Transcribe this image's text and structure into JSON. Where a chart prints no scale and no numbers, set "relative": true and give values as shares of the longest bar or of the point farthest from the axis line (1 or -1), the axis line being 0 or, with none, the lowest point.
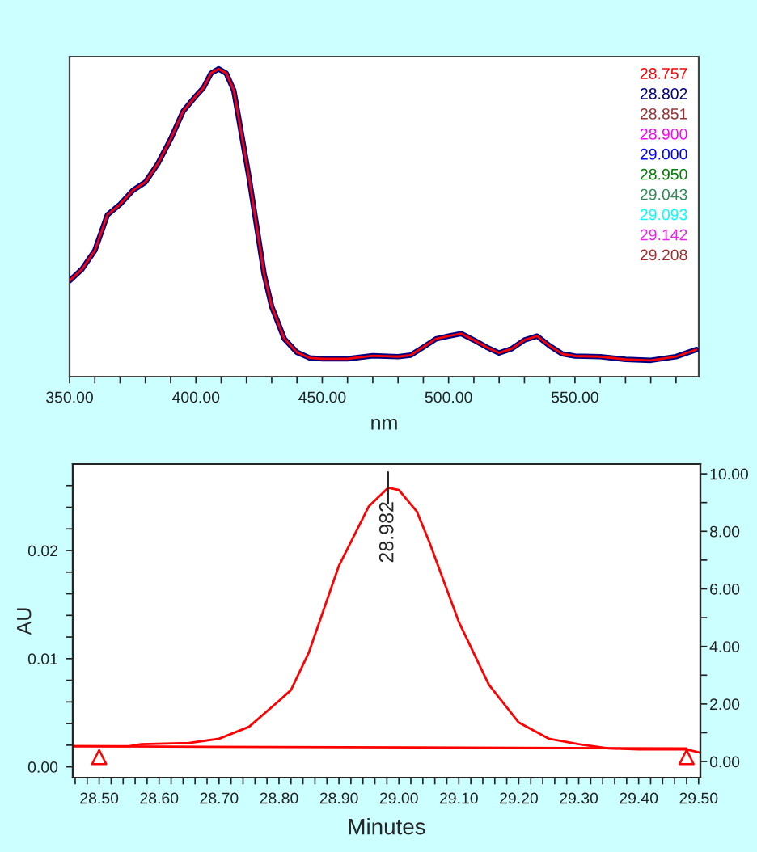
{
  "chart_data": [
    {
      "type": "line",
      "relative": true,
      "xlabel": "nm",
      "legend": "top right",
      "grid": false,
      "x": [
        350,
        355,
        360,
        365,
        370,
        375,
        380,
        385,
        390,
        395,
        400,
        403,
        406,
        409,
        412,
        415,
        418,
        421,
        424,
        427,
        430,
        435,
        440,
        445,
        450,
        460,
        470,
        480,
        485,
        490,
        495,
        500,
        505,
        510,
        515,
        520,
        525,
        530,
        535,
        540,
        545,
        550,
        560,
        570,
        580,
        590,
        598
      ],
      "xlim": [
        350,
        599
      ],
      "xticks": [
        {
          "value": 350,
          "label": "350.00"
        },
        {
          "value": 360,
          "label": null
        },
        {
          "value": 370,
          "label": null
        },
        {
          "value": 380,
          "label": null
        },
        {
          "value": 390,
          "label": null
        },
        {
          "value": 400,
          "label": "400.00"
        },
        {
          "value": 410,
          "label": null
        },
        {
          "value": 420,
          "label": null
        },
        {
          "value": 430,
          "label": null
        },
        {
          "value": 440,
          "label": null
        },
        {
          "value": 450,
          "label": "450.00"
        },
        {
          "value": 460,
          "label": null
        },
        {
          "value": 470,
          "label": null
        },
        {
          "value": 480,
          "label": null
        },
        {
          "value": 490,
          "label": null
        },
        {
          "value": 500,
          "label": "500.00"
        },
        {
          "value": 510,
          "label": null
        },
        {
          "value": 520,
          "label": null
        },
        {
          "value": 530,
          "label": null
        },
        {
          "value": 540,
          "label": null
        },
        {
          "value": 550,
          "label": "550.00"
        },
        {
          "value": 560,
          "label": null
        },
        {
          "value": 570,
          "label": null
        },
        {
          "value": 580,
          "label": null
        },
        {
          "value": 590,
          "label": null
        }
      ],
      "series": [
        {
          "name": "28.757",
          "color": "#ff0000",
          "values": [
            0.312,
            0.35,
            0.41,
            0.526,
            0.56,
            0.605,
            0.632,
            0.693,
            0.772,
            0.863,
            0.912,
            0.939,
            0.986,
            1.0,
            0.986,
            0.93,
            0.79,
            0.649,
            0.491,
            0.333,
            0.228,
            0.123,
            0.079,
            0.061,
            0.058,
            0.058,
            0.068,
            0.065,
            0.07,
            0.096,
            0.123,
            0.132,
            0.14,
            0.119,
            0.096,
            0.077,
            0.091,
            0.119,
            0.132,
            0.1,
            0.074,
            0.067,
            0.065,
            0.056,
            0.053,
            0.065,
            0.088
          ]
        },
        {
          "name": "28.802",
          "color": "#000080",
          "values": [
            0.312,
            0.35,
            0.41,
            0.526,
            0.56,
            0.605,
            0.632,
            0.693,
            0.772,
            0.863,
            0.912,
            0.939,
            0.986,
            1.0,
            0.986,
            0.93,
            0.79,
            0.649,
            0.491,
            0.333,
            0.228,
            0.123,
            0.079,
            0.061,
            0.058,
            0.058,
            0.068,
            0.065,
            0.07,
            0.096,
            0.123,
            0.132,
            0.14,
            0.119,
            0.096,
            0.077,
            0.091,
            0.119,
            0.132,
            0.1,
            0.074,
            0.067,
            0.065,
            0.056,
            0.053,
            0.065,
            0.088
          ]
        },
        {
          "name": "28.851",
          "color": "#993333",
          "values": [
            null,
            null,
            null,
            null,
            null,
            null,
            null,
            null,
            null,
            null,
            null,
            null,
            null,
            null,
            null,
            null,
            null,
            null,
            null,
            null,
            null,
            null,
            null,
            null,
            null,
            null,
            null,
            null,
            null,
            null,
            null,
            null,
            null,
            null,
            null,
            null,
            null,
            null,
            null,
            null,
            null,
            null,
            null,
            null,
            null,
            null,
            null
          ]
        },
        {
          "name": "28.900",
          "color": "#ff00ff",
          "values": [
            null,
            null,
            null,
            null,
            null,
            null,
            null,
            null,
            null,
            null,
            null,
            null,
            null,
            null,
            null,
            null,
            null,
            null,
            null,
            null,
            null,
            null,
            null,
            null,
            null,
            null,
            null,
            null,
            null,
            null,
            null,
            null,
            null,
            null,
            null,
            null,
            null,
            null,
            null,
            null,
            null,
            null,
            null,
            null,
            null,
            null,
            null
          ]
        },
        {
          "name": "29.000",
          "color": "#0000ff",
          "values": [
            null,
            null,
            null,
            null,
            null,
            null,
            null,
            null,
            null,
            null,
            null,
            null,
            null,
            null,
            null,
            null,
            null,
            null,
            null,
            null,
            null,
            null,
            null,
            null,
            null,
            null,
            null,
            null,
            null,
            null,
            null,
            null,
            null,
            null,
            null,
            null,
            null,
            null,
            null,
            null,
            null,
            null,
            null,
            null,
            null,
            null,
            null
          ]
        },
        {
          "name": "28.950",
          "color": "#008000",
          "values": [
            null,
            null,
            null,
            null,
            null,
            null,
            null,
            null,
            null,
            null,
            null,
            null,
            null,
            null,
            null,
            null,
            null,
            null,
            null,
            null,
            null,
            null,
            null,
            null,
            null,
            null,
            null,
            null,
            null,
            null,
            null,
            null,
            null,
            null,
            null,
            null,
            null,
            null,
            null,
            null,
            null,
            null,
            null,
            null,
            null,
            null,
            null
          ]
        },
        {
          "name": "29.043",
          "color": "#2e8b57",
          "values": [
            null,
            null,
            null,
            null,
            null,
            null,
            null,
            null,
            null,
            null,
            null,
            null,
            null,
            null,
            null,
            null,
            null,
            null,
            null,
            null,
            null,
            null,
            null,
            null,
            null,
            null,
            null,
            null,
            null,
            null,
            null,
            null,
            null,
            null,
            null,
            null,
            null,
            null,
            null,
            null,
            null,
            null,
            null,
            null,
            null,
            null,
            null
          ]
        },
        {
          "name": "29.093",
          "color": "#00ffff",
          "values": [
            null,
            null,
            null,
            null,
            null,
            null,
            null,
            null,
            null,
            null,
            null,
            null,
            null,
            null,
            null,
            null,
            null,
            null,
            null,
            null,
            null,
            null,
            null,
            null,
            null,
            null,
            null,
            null,
            null,
            null,
            null,
            null,
            null,
            null,
            null,
            null,
            null,
            null,
            null,
            null,
            null,
            null,
            null,
            null,
            null,
            null,
            null
          ]
        },
        {
          "name": "29.142",
          "color": "#ee22ee",
          "values": [
            null,
            null,
            null,
            null,
            null,
            null,
            null,
            null,
            null,
            null,
            null,
            null,
            null,
            null,
            null,
            null,
            null,
            null,
            null,
            null,
            null,
            null,
            null,
            null,
            null,
            null,
            null,
            null,
            null,
            null,
            null,
            null,
            null,
            null,
            null,
            null,
            null,
            null,
            null,
            null,
            null,
            null,
            null,
            null,
            null,
            null,
            null
          ]
        },
        {
          "name": "29.208",
          "color": "#a52a2a",
          "values": [
            null,
            null,
            null,
            null,
            null,
            null,
            null,
            null,
            null,
            null,
            null,
            null,
            null,
            null,
            null,
            null,
            null,
            null,
            null,
            null,
            null,
            null,
            null,
            null,
            null,
            null,
            null,
            null,
            null,
            null,
            null,
            null,
            null,
            null,
            null,
            null,
            null,
            null,
            null,
            null,
            null,
            null,
            null,
            null,
            null,
            null,
            null
          ]
        }
      ]
    },
    {
      "type": "line",
      "xlabel": "Minutes",
      "ylabel": "AU",
      "grid": false,
      "xlim": [
        28.456,
        29.503
      ],
      "xticks": [
        {
          "value": 28.5,
          "label": "28.50"
        },
        {
          "value": 28.6,
          "label": "28.60"
        },
        {
          "value": 28.7,
          "label": "28.70"
        },
        {
          "value": 28.8,
          "label": "28.80"
        },
        {
          "value": 28.9,
          "label": "28.90"
        },
        {
          "value": 29.0,
          "label": "29.00"
        },
        {
          "value": 29.1,
          "label": "29.10"
        },
        {
          "value": 29.2,
          "label": "29.20"
        },
        {
          "value": 29.3,
          "label": "29.30"
        },
        {
          "value": 29.4,
          "label": "29.40"
        },
        {
          "value": 29.5,
          "label": "29.50"
        },
        {
          "value": 28.46,
          "label": null
        },
        {
          "value": 28.48,
          "label": null
        },
        {
          "value": 28.52,
          "label": null
        },
        {
          "value": 28.54,
          "label": null
        },
        {
          "value": 28.56,
          "label": null
        },
        {
          "value": 28.58,
          "label": null
        },
        {
          "value": 28.62,
          "label": null
        },
        {
          "value": 28.64,
          "label": null
        },
        {
          "value": 28.66,
          "label": null
        },
        {
          "value": 28.68,
          "label": null
        },
        {
          "value": 28.72,
          "label": null
        },
        {
          "value": 28.74,
          "label": null
        },
        {
          "value": 28.76,
          "label": null
        },
        {
          "value": 28.78,
          "label": null
        },
        {
          "value": 28.82,
          "label": null
        },
        {
          "value": 28.84,
          "label": null
        },
        {
          "value": 28.86,
          "label": null
        },
        {
          "value": 28.88,
          "label": null
        },
        {
          "value": 28.92,
          "label": null
        },
        {
          "value": 28.94,
          "label": null
        },
        {
          "value": 28.96,
          "label": null
        },
        {
          "value": 28.98,
          "label": null
        },
        {
          "value": 29.02,
          "label": null
        },
        {
          "value": 29.04,
          "label": null
        },
        {
          "value": 29.06,
          "label": null
        },
        {
          "value": 29.08,
          "label": null
        },
        {
          "value": 29.12,
          "label": null
        },
        {
          "value": 29.14,
          "label": null
        },
        {
          "value": 29.16,
          "label": null
        },
        {
          "value": 29.18,
          "label": null
        },
        {
          "value": 29.22,
          "label": null
        },
        {
          "value": 29.24,
          "label": null
        },
        {
          "value": 29.26,
          "label": null
        },
        {
          "value": 29.28,
          "label": null
        },
        {
          "value": 29.32,
          "label": null
        },
        {
          "value": 29.34,
          "label": null
        },
        {
          "value": 29.36,
          "label": null
        },
        {
          "value": 29.38,
          "label": null
        },
        {
          "value": 29.42,
          "label": null
        },
        {
          "value": 29.44,
          "label": null
        },
        {
          "value": 29.46,
          "label": null
        },
        {
          "value": 29.48,
          "label": null
        }
      ],
      "ylim": [
        -0.001,
        0.028
      ],
      "yticks": [
        {
          "value": 0.0,
          "label": "0.00"
        },
        {
          "value": 0.01,
          "label": "0.01"
        },
        {
          "value": 0.02,
          "label": "0.02"
        },
        {
          "value": 0.002,
          "label": null
        },
        {
          "value": 0.004,
          "label": null
        },
        {
          "value": 0.006,
          "label": null
        },
        {
          "value": 0.008,
          "label": null
        },
        {
          "value": 0.012,
          "label": null
        },
        {
          "value": 0.014,
          "label": null
        },
        {
          "value": 0.016,
          "label": null
        },
        {
          "value": 0.018,
          "label": null
        },
        {
          "value": 0.022,
          "label": null
        },
        {
          "value": 0.024,
          "label": null
        },
        {
          "value": 0.026,
          "label": null
        }
      ],
      "y2lim": [
        -0.56,
        10.34
      ],
      "y2ticks": [
        {
          "value": 0,
          "label": "0.00"
        },
        {
          "value": 2,
          "label": "2.00"
        },
        {
          "value": 4,
          "label": "4.00"
        },
        {
          "value": 6,
          "label": "6.00"
        },
        {
          "value": 8,
          "label": "8.00"
        },
        {
          "value": 10,
          "label": "10.00"
        },
        {
          "value": 1,
          "label": null
        },
        {
          "value": 3,
          "label": null
        },
        {
          "value": 5,
          "label": null
        },
        {
          "value": 7,
          "label": null
        },
        {
          "value": 9,
          "label": null
        }
      ],
      "annotations": [
        {
          "text": "28.982",
          "x": 28.982,
          "y": 0.0258
        }
      ],
      "series": [
        {
          "type": "line",
          "color": "#ff0000",
          "x": [
            28.456,
            28.5,
            28.55,
            28.57,
            28.65,
            28.7,
            28.75,
            28.8,
            28.82,
            28.85,
            28.9,
            28.95,
            28.982,
            29.0,
            29.03,
            29.05,
            29.1,
            29.15,
            29.2,
            29.25,
            29.3,
            29.35,
            29.4,
            29.48,
            29.503
          ],
          "values": [
            0.0019,
            0.0019,
            0.0019,
            0.0021,
            0.0022,
            0.0026,
            0.0037,
            0.0061,
            0.0071,
            0.0106,
            0.0186,
            0.0241,
            0.0258,
            0.0256,
            0.0236,
            0.0209,
            0.0134,
            0.0076,
            0.0041,
            0.0026,
            0.0021,
            0.0017,
            0.0016,
            0.0016,
            0.0013
          ]
        },
        {
          "type": "line",
          "color": "#ff0000",
          "x": [
            28.456,
            29.48
          ],
          "values": [
            0.0019,
            0.0017
          ]
        },
        {
          "type": "scatter",
          "color": "#ff0000",
          "marker": "triangle",
          "x": [
            28.5,
            29.48
          ],
          "values": [
            0.0009,
            0.0009
          ]
        }
      ]
    }
  ]
}
